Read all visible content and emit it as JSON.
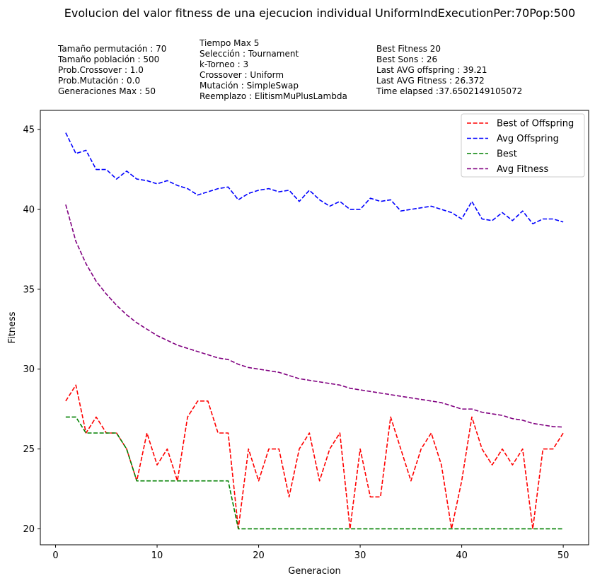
{
  "chart_data": {
    "type": "line",
    "title": "Evolucion del valor fitness de una ejecucion individual UniformIndExecutionPer:70Pop:500",
    "info_blocks": [
      [
        "Tamaño permutación : 70",
        "Tamaño población : 500",
        "Prob.Crossover : 1.0",
        "Prob.Mutación : 0.0",
        "Generaciones Max : 50"
      ],
      [
        "Tiempo Max 5",
        "Selección : Tournament",
        "k-Torneo : 3",
        "Crossover : Uniform",
        "Mutación : SimpleSwap",
        "Reemplazo : ElitismMuPlusLambda"
      ],
      [
        "Best Fitness 20",
        "Best Sons : 26",
        "Last AVG offspring : 39.21",
        "Last AVG Fitness : 26.372",
        "Time elapsed :37.6502149105072"
      ]
    ],
    "xlabel": "Generacion",
    "ylabel": "Fitness",
    "xlim": [
      -1.5,
      52.5
    ],
    "ylim": [
      19.0,
      46.2
    ],
    "xticks": [
      0,
      10,
      20,
      30,
      40,
      50
    ],
    "yticks": [
      20,
      25,
      30,
      35,
      40,
      45
    ],
    "grid": false,
    "legend_position": "top-right",
    "x": [
      1,
      2,
      3,
      4,
      5,
      6,
      7,
      8,
      9,
      10,
      11,
      12,
      13,
      14,
      15,
      16,
      17,
      18,
      19,
      20,
      21,
      22,
      23,
      24,
      25,
      26,
      27,
      28,
      29,
      30,
      31,
      32,
      33,
      34,
      35,
      36,
      37,
      38,
      39,
      40,
      41,
      42,
      43,
      44,
      45,
      46,
      47,
      48,
      49,
      50
    ],
    "series": [
      {
        "name": "Best of Offspring",
        "color": "#ff0000",
        "style": "dashed",
        "values": [
          28,
          29,
          26,
          27,
          26,
          26,
          25,
          23,
          26,
          24,
          25,
          23,
          27,
          28,
          28,
          26,
          26,
          20,
          25,
          23,
          25,
          25,
          22,
          25,
          26,
          23,
          25,
          26,
          20,
          25,
          22,
          22,
          27,
          25,
          23,
          25,
          26,
          24,
          20,
          23,
          27,
          25,
          24,
          25,
          24,
          25,
          20,
          25,
          25,
          26
        ]
      },
      {
        "name": "Avg Offspring",
        "color": "#0000ff",
        "style": "dashed",
        "values": [
          44.8,
          43.5,
          43.7,
          42.5,
          42.5,
          41.9,
          42.4,
          41.9,
          41.8,
          41.6,
          41.8,
          41.5,
          41.3,
          40.9,
          41.1,
          41.3,
          41.4,
          40.6,
          41.0,
          41.2,
          41.3,
          41.1,
          41.2,
          40.5,
          41.2,
          40.6,
          40.2,
          40.5,
          40.0,
          40.0,
          40.7,
          40.5,
          40.6,
          39.9,
          40.0,
          40.1,
          40.2,
          40.0,
          39.8,
          39.4,
          40.5,
          39.4,
          39.3,
          39.8,
          39.3,
          39.9,
          39.1,
          39.4,
          39.4,
          39.21
        ]
      },
      {
        "name": "Best",
        "color": "#008000",
        "style": "dashed",
        "values": [
          27,
          27,
          26,
          26,
          26,
          26,
          25,
          23,
          23,
          23,
          23,
          23,
          23,
          23,
          23,
          23,
          23,
          20,
          20,
          20,
          20,
          20,
          20,
          20,
          20,
          20,
          20,
          20,
          20,
          20,
          20,
          20,
          20,
          20,
          20,
          20,
          20,
          20,
          20,
          20,
          20,
          20,
          20,
          20,
          20,
          20,
          20,
          20,
          20,
          20
        ]
      },
      {
        "name": "Avg Fitness",
        "color": "#800080",
        "style": "dashed",
        "values": [
          40.3,
          38.0,
          36.6,
          35.5,
          34.7,
          34.0,
          33.4,
          32.9,
          32.5,
          32.1,
          31.8,
          31.5,
          31.3,
          31.1,
          30.9,
          30.7,
          30.6,
          30.3,
          30.1,
          30.0,
          29.9,
          29.8,
          29.6,
          29.4,
          29.3,
          29.2,
          29.1,
          29.0,
          28.8,
          28.7,
          28.6,
          28.5,
          28.4,
          28.3,
          28.2,
          28.1,
          28.0,
          27.9,
          27.7,
          27.5,
          27.5,
          27.3,
          27.2,
          27.1,
          26.9,
          26.8,
          26.6,
          26.5,
          26.4,
          26.372
        ]
      }
    ]
  }
}
